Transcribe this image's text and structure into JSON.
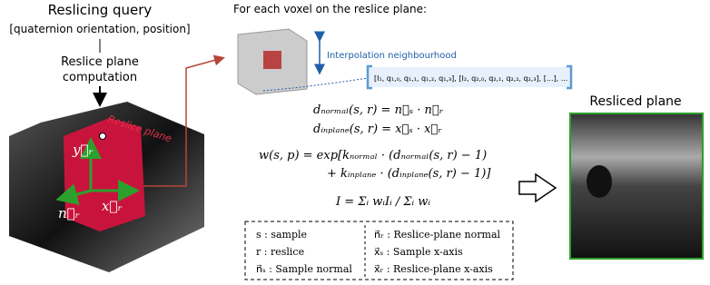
{
  "query": {
    "title": "Reslicing query",
    "subtitle": "[quaternion orientation, position]",
    "step": [
      "Reslice plane",
      "computation"
    ]
  },
  "volume": {
    "plane_label": "Reslice plane",
    "axes": {
      "y": "y⃗ᵣ",
      "n": "n⃗ᵣ",
      "x": "x⃗ᵣ"
    }
  },
  "voxel": {
    "heading": "For each voxel on the reslice plane:",
    "neighbourhood": "Interpolation neighbourhood",
    "list": "[I₁, q₁,₀, q₁,₁, q₁,₂, q₁,₃], [I₂, q₂,₀, q₂,₁, q₂,₂, q₂,₃], [...], ..."
  },
  "equations": [
    "dₙₒᵣₘₐₗ(s, r) = n⃗ₛ · n⃗ᵣ",
    "dᵢₙₚₗₐₙₑ(s, r) = x⃗ₛ · x⃗ᵣ",
    "w(s, p) = exp[kₙₒᵣₘₐₗ · (dₙₒᵣₘₐₗ(s, r) − 1)",
    "+ kᵢₙₚₗₐₙₑ · (dᵢₙₚₗₐₙₑ(s, r) − 1)]",
    "I = Σᵢ wᵢIᵢ / Σᵢ wᵢ"
  ],
  "legend": [
    [
      "s : sample",
      "n⃗ᵣ : Reslice-plane normal"
    ],
    [
      "r : reslice",
      "x⃗ₛ : Sample x-axis"
    ],
    [
      "n⃗ₛ : Sample normal",
      "x⃗ᵣ : Reslice-plane x-axis"
    ]
  ],
  "output": {
    "title": "Resliced plane"
  }
}
